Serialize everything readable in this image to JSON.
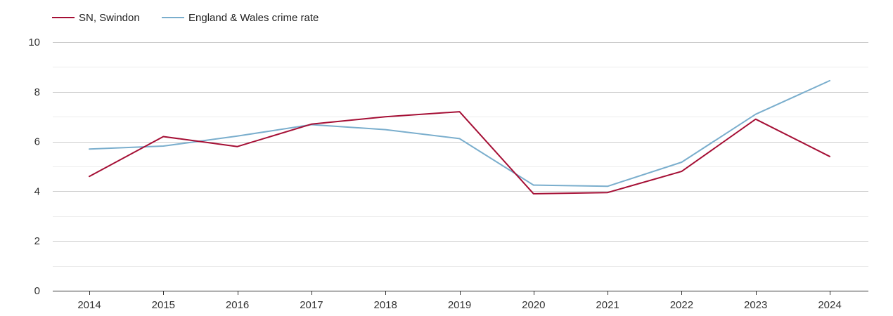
{
  "chart_data": {
    "type": "line",
    "title": "",
    "xlabel": "",
    "ylabel": "",
    "categories": [
      "2014",
      "2015",
      "2016",
      "2017",
      "2018",
      "2019",
      "2020",
      "2021",
      "2022",
      "2023",
      "2024"
    ],
    "ylim": [
      0,
      10
    ],
    "yticks": [
      "0",
      "2",
      "4",
      "6",
      "8",
      "10"
    ],
    "grid": true,
    "legend_position": "top-left",
    "series": [
      {
        "name": "SN, Swindon",
        "color": "#a50f35",
        "values": [
          4.6,
          6.2,
          5.8,
          6.7,
          7.0,
          7.2,
          3.9,
          3.95,
          4.8,
          6.9,
          5.4
        ]
      },
      {
        "name": "England & Wales crime rate",
        "color": "#7aaecd",
        "values": [
          5.7,
          5.82,
          6.22,
          6.68,
          6.48,
          6.12,
          4.25,
          4.2,
          5.17,
          7.1,
          8.45
        ]
      }
    ]
  }
}
